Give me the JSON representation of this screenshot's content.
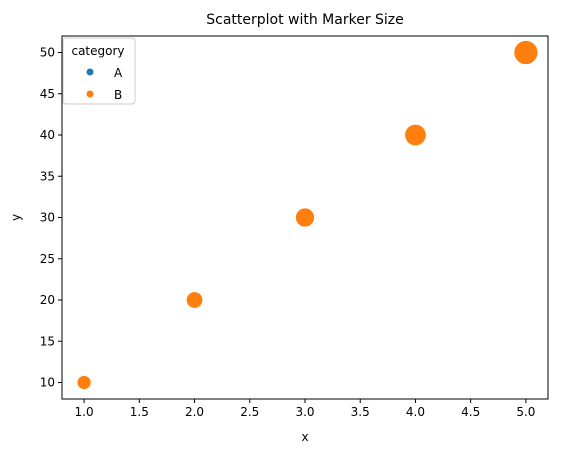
{
  "chart_data": {
    "type": "scatter",
    "title": "Scatterplot with Marker Size",
    "xlabel": "x",
    "ylabel": "y",
    "xlim": [
      0.8,
      5.2
    ],
    "ylim": [
      8,
      52
    ],
    "xticks": [
      "1.0",
      "1.5",
      "2.0",
      "2.5",
      "3.0",
      "3.5",
      "4.0",
      "4.5",
      "5.0"
    ],
    "yticks": [
      "10",
      "15",
      "20",
      "25",
      "30",
      "35",
      "40",
      "45",
      "50"
    ],
    "grid": false,
    "legend": {
      "title": "category",
      "placement": "top-left",
      "entries": [
        {
          "label": "A",
          "color": "#1f77b4"
        },
        {
          "label": "B",
          "color": "#ff7f0e"
        }
      ]
    },
    "points": [
      {
        "x": 1,
        "y": 10,
        "size": 10,
        "category": "B"
      },
      {
        "x": 2,
        "y": 20,
        "size": 20,
        "category": "B"
      },
      {
        "x": 3,
        "y": 30,
        "size": 30,
        "category": "B"
      },
      {
        "x": 4,
        "y": 40,
        "size": 40,
        "category": "B"
      },
      {
        "x": 5,
        "y": 50,
        "size": 50,
        "category": "B"
      }
    ]
  }
}
